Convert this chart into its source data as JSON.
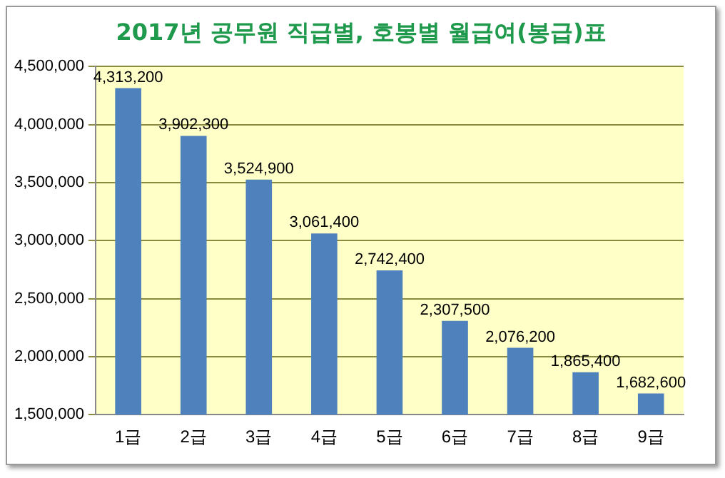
{
  "chart_data": {
    "type": "bar",
    "title": "2017년 공무원 직급별, 호봉별 월급여(봉급)표",
    "categories": [
      "1급",
      "2급",
      "3급",
      "4급",
      "5급",
      "6급",
      "7급",
      "8급",
      "9급"
    ],
    "values": [
      4313200,
      3902300,
      3524900,
      3061400,
      2742400,
      2307500,
      2076200,
      1865400,
      1682600
    ],
    "color": "#4f81bd",
    "ylim": [
      1500000,
      4500000
    ],
    "yticks": [
      {
        "value": 1500000,
        "label": "1,500,000"
      },
      {
        "value": 2000000,
        "label": "2,000,000"
      },
      {
        "value": 2500000,
        "label": "2,500,000"
      },
      {
        "value": 3000000,
        "label": "3,000,000"
      },
      {
        "value": 3500000,
        "label": "3,500,000"
      },
      {
        "value": 4000000,
        "label": "4,000,000"
      },
      {
        "value": 4500000,
        "label": "4,500,000"
      }
    ],
    "value_labels": [
      "4,313,200",
      "3,902,300",
      "3,524,900",
      "3,061,400",
      "2,742,400",
      "2,307,500",
      "2,076,200",
      "1,865,400",
      "1,682,600"
    ],
    "grid": "y",
    "legend": false
  }
}
